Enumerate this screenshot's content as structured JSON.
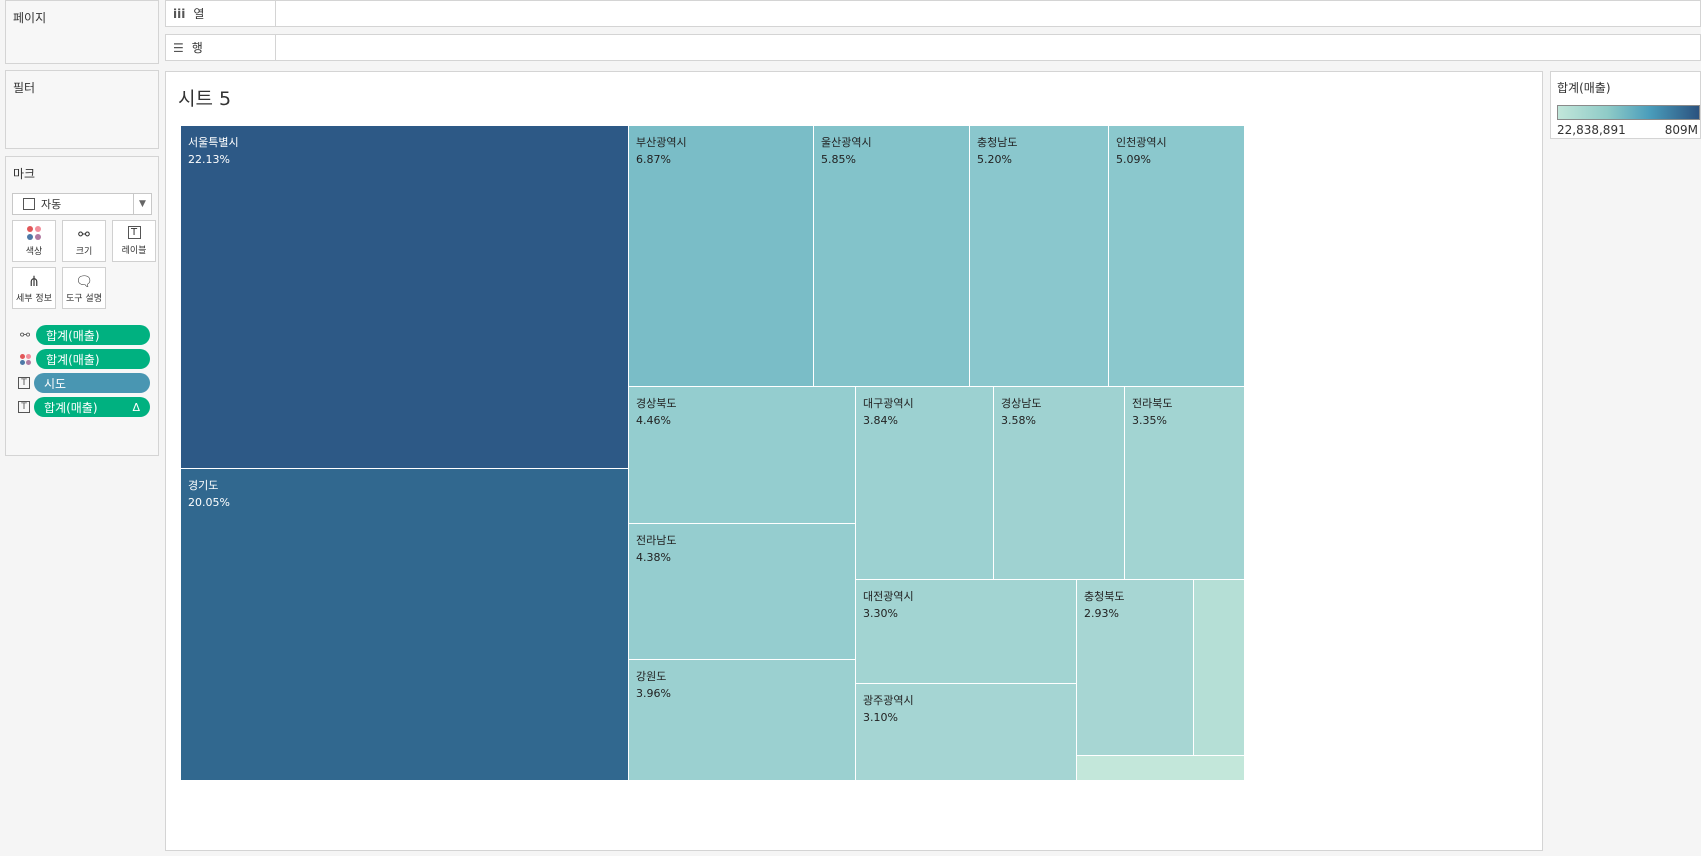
{
  "panels": {
    "pages": "페이지",
    "filters": "필터",
    "marks": "마크"
  },
  "shelves": {
    "columns": {
      "icon": "iii",
      "label": "열"
    },
    "rows": {
      "icon": "☰",
      "label": "행"
    }
  },
  "marks": {
    "type": "자동",
    "buttons": [
      {
        "label": "색상",
        "icon": "color-icon"
      },
      {
        "label": "크기",
        "icon": "size-icon"
      },
      {
        "label": "레이블",
        "icon": "label-icon"
      },
      {
        "label": "세부 정보",
        "icon": "detail-icon"
      },
      {
        "label": "도구 설명",
        "icon": "tooltip-icon"
      }
    ],
    "pills": [
      {
        "icon": "size-icon",
        "label": "합계(매출)",
        "color": "#00b180"
      },
      {
        "icon": "color-icon",
        "label": "합계(매출)",
        "color": "#00b180"
      },
      {
        "icon": "label-icon",
        "label": "시도",
        "color": "#4996b2"
      },
      {
        "icon": "label-icon",
        "label": "합계(매출)",
        "color": "#00b180",
        "badge": "Δ"
      }
    ]
  },
  "sheet": {
    "title": "시트 5"
  },
  "legend": {
    "title": "합계(매출)",
    "min": "22,838,891",
    "max": "809M"
  },
  "chart_data": {
    "type": "treemap",
    "title": "",
    "series": [
      {
        "name": "서울특별시",
        "label": "22.13%",
        "value": 22.13,
        "color": "#2d5986"
      },
      {
        "name": "경기도",
        "label": "20.05%",
        "value": 20.05,
        "color": "#31688f"
      },
      {
        "name": "부산광역시",
        "label": "6.87%",
        "value": 6.87,
        "color": "#7abdc7"
      },
      {
        "name": "울산광역시",
        "label": "5.85%",
        "value": 5.85,
        "color": "#83c3ca"
      },
      {
        "name": "충청남도",
        "label": "5.20%",
        "value": 5.2,
        "color": "#8ac7cd"
      },
      {
        "name": "인천광역시",
        "label": "5.09%",
        "value": 5.09,
        "color": "#8bc8cd"
      },
      {
        "name": "경상북도",
        "label": "4.46%",
        "value": 4.46,
        "color": "#94cdcf"
      },
      {
        "name": "전라남도",
        "label": "4.38%",
        "value": 4.38,
        "color": "#95cdcf"
      },
      {
        "name": "강원도",
        "label": "3.96%",
        "value": 3.96,
        "color": "#9bd0d0"
      },
      {
        "name": "대구광역시",
        "label": "3.84%",
        "value": 3.84,
        "color": "#9cd1d1"
      },
      {
        "name": "경상남도",
        "label": "3.58%",
        "value": 3.58,
        "color": "#9fd2d1"
      },
      {
        "name": "전라북도",
        "label": "3.35%",
        "value": 3.35,
        "color": "#a2d4d2"
      },
      {
        "name": "대전광역시",
        "label": "3.30%",
        "value": 3.3,
        "color": "#a2d4d2"
      },
      {
        "name": "광주광역시",
        "label": "3.10%",
        "value": 3.1,
        "color": "#a5d5d3"
      },
      {
        "name": "충청북도",
        "label": "2.93%",
        "value": 2.93,
        "color": "#a7d6d3"
      },
      {
        "name": "",
        "label": "",
        "value": 1.4,
        "color": "#b5dfd6"
      },
      {
        "name": "",
        "label": "",
        "value": 0.5,
        "color": "#c3e7da"
      }
    ]
  }
}
